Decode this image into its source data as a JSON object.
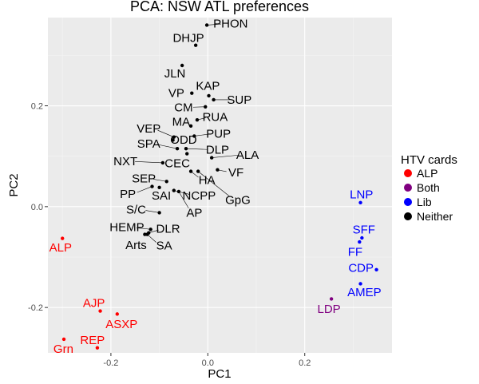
{
  "chart_data": {
    "type": "scatter",
    "title": "PCA: NSW ATL preferences",
    "xlabel": "PC1",
    "ylabel": "PC2",
    "xlim": [
      -0.33,
      0.38
    ],
    "ylim": [
      -0.29,
      0.375
    ],
    "x_ticks": [
      -0.2,
      0.0,
      0.2
    ],
    "x_tick_labels": [
      "-0.2",
      "0.0",
      "0.2"
    ],
    "y_ticks": [
      -0.2,
      0.0,
      0.2
    ],
    "y_tick_labels": [
      "-0.2",
      "0.0",
      "0.2"
    ],
    "grid": true,
    "legend": {
      "title": "HTV cards",
      "position": "right",
      "entries": [
        {
          "name": "ALP",
          "color": "#ff0000"
        },
        {
          "name": "Both",
          "color": "#800080"
        },
        {
          "name": "Lib",
          "color": "#0000ff"
        },
        {
          "name": "Neither",
          "color": "#000000"
        }
      ]
    },
    "points": [
      {
        "label": "PHON",
        "x": -0.002,
        "y": 0.36,
        "group": "Neither",
        "lx": 0.047,
        "ly": 0.363
      },
      {
        "label": "DHJP",
        "x": -0.025,
        "y": 0.32,
        "group": "Neither",
        "lx": -0.04,
        "ly": 0.335
      },
      {
        "label": "JLN",
        "x": -0.053,
        "y": 0.28,
        "group": "Neither",
        "lx": -0.068,
        "ly": 0.264
      },
      {
        "label": "KAP",
        "x": 0.002,
        "y": 0.22,
        "group": "Neither",
        "lx": 0.0,
        "ly": 0.24
      },
      {
        "label": "VP",
        "x": -0.033,
        "y": 0.225,
        "group": "Neither",
        "lx": -0.065,
        "ly": 0.225
      },
      {
        "label": "SUP",
        "x": 0.012,
        "y": 0.212,
        "group": "Neither",
        "lx": 0.065,
        "ly": 0.212
      },
      {
        "label": "CM",
        "x": -0.005,
        "y": 0.198,
        "group": "Neither",
        "lx": -0.05,
        "ly": 0.197
      },
      {
        "label": "RUA",
        "x": -0.022,
        "y": 0.172,
        "group": "Neither",
        "lx": 0.015,
        "ly": 0.178
      },
      {
        "label": "MA",
        "x": -0.035,
        "y": 0.16,
        "group": "Neither",
        "lx": -0.055,
        "ly": 0.168
      },
      {
        "label": "PUP",
        "x": -0.028,
        "y": 0.14,
        "group": "Neither",
        "lx": 0.022,
        "ly": 0.145
      },
      {
        "label": "VEP",
        "x": -0.07,
        "y": 0.138,
        "group": "Neither",
        "lx": -0.122,
        "ly": 0.155
      },
      {
        "label": "ODD",
        "x": -0.072,
        "y": 0.132,
        "group": "Neither",
        "lx": -0.05,
        "ly": 0.133
      },
      {
        "label": "SPA",
        "x": -0.063,
        "y": 0.115,
        "group": "Neither",
        "lx": -0.122,
        "ly": 0.125
      },
      {
        "label": "DLP",
        "x": -0.045,
        "y": 0.115,
        "group": "Neither",
        "lx": 0.02,
        "ly": 0.113
      },
      {
        "label": "ALA",
        "x": 0.008,
        "y": 0.097,
        "group": "Neither",
        "lx": 0.082,
        "ly": 0.103
      },
      {
        "label": "NXT",
        "x": -0.093,
        "y": 0.087,
        "group": "Neither",
        "lx": -0.17,
        "ly": 0.09
      },
      {
        "label": "CEC",
        "x": -0.043,
        "y": 0.105,
        "group": "Neither",
        "lx": -0.063,
        "ly": 0.086
      },
      {
        "label": "VF",
        "x": 0.02,
        "y": 0.073,
        "group": "Neither",
        "lx": 0.058,
        "ly": 0.068
      },
      {
        "label": "HA",
        "x": -0.035,
        "y": 0.07,
        "group": "Neither",
        "lx": -0.002,
        "ly": 0.053
      },
      {
        "label": "SEP",
        "x": -0.085,
        "y": 0.05,
        "group": "Neither",
        "lx": -0.132,
        "ly": 0.056
      },
      {
        "label": "PP",
        "x": -0.115,
        "y": 0.04,
        "group": "Neither",
        "lx": -0.165,
        "ly": 0.025
      },
      {
        "label": "SAI",
        "x": -0.1,
        "y": 0.038,
        "group": "Neither",
        "lx": -0.096,
        "ly": 0.022
      },
      {
        "label": "NCPP",
        "x": -0.07,
        "y": 0.032,
        "group": "Neither",
        "lx": -0.018,
        "ly": 0.022
      },
      {
        "label": "GpG",
        "x": -0.02,
        "y": 0.07,
        "group": "Neither",
        "lx": 0.062,
        "ly": 0.013
      },
      {
        "label": "AP",
        "x": -0.06,
        "y": 0.03,
        "group": "Neither",
        "lx": -0.028,
        "ly": -0.012
      },
      {
        "label": "S/C",
        "x": -0.1,
        "y": -0.012,
        "group": "Neither",
        "lx": -0.148,
        "ly": -0.006
      },
      {
        "label": "HEMP",
        "x": -0.118,
        "y": -0.045,
        "group": "Neither",
        "lx": -0.167,
        "ly": -0.041
      },
      {
        "label": "DLR",
        "x": -0.122,
        "y": -0.052,
        "group": "Neither",
        "lx": -0.082,
        "ly": -0.044
      },
      {
        "label": "Arts",
        "x": -0.13,
        "y": -0.055,
        "group": "Neither",
        "lx": -0.148,
        "ly": -0.076
      },
      {
        "label": "SA",
        "x": -0.125,
        "y": -0.055,
        "group": "Neither",
        "lx": -0.09,
        "ly": -0.077
      },
      {
        "label": "ALP",
        "x": -0.3,
        "y": -0.063,
        "group": "ALP",
        "lx": -0.304,
        "ly": -0.081
      },
      {
        "label": "AJP",
        "x": -0.222,
        "y": -0.207,
        "group": "ALP",
        "lx": -0.235,
        "ly": -0.191
      },
      {
        "label": "ASXP",
        "x": -0.187,
        "y": -0.213,
        "group": "ALP",
        "lx": -0.178,
        "ly": -0.233
      },
      {
        "label": "Grn",
        "x": -0.297,
        "y": -0.263,
        "group": "ALP",
        "lx": -0.298,
        "ly": -0.282
      },
      {
        "label": "REP",
        "x": -0.228,
        "y": -0.28,
        "group": "ALP",
        "lx": -0.238,
        "ly": -0.265
      },
      {
        "label": "LDP",
        "x": 0.255,
        "y": -0.183,
        "group": "Both",
        "lx": 0.25,
        "ly": -0.203
      },
      {
        "label": "LNP",
        "x": 0.315,
        "y": 0.008,
        "group": "Lib",
        "lx": 0.317,
        "ly": 0.024
      },
      {
        "label": "SFF",
        "x": 0.318,
        "y": -0.062,
        "group": "Lib",
        "lx": 0.322,
        "ly": -0.045
      },
      {
        "label": "FF",
        "x": 0.313,
        "y": -0.07,
        "group": "Lib",
        "lx": 0.304,
        "ly": -0.09
      },
      {
        "label": "CDP",
        "x": 0.348,
        "y": -0.125,
        "group": "Lib",
        "lx": 0.316,
        "ly": -0.121
      },
      {
        "label": "AMEP",
        "x": 0.315,
        "y": -0.153,
        "group": "Lib",
        "lx": 0.323,
        "ly": -0.17
      }
    ]
  }
}
